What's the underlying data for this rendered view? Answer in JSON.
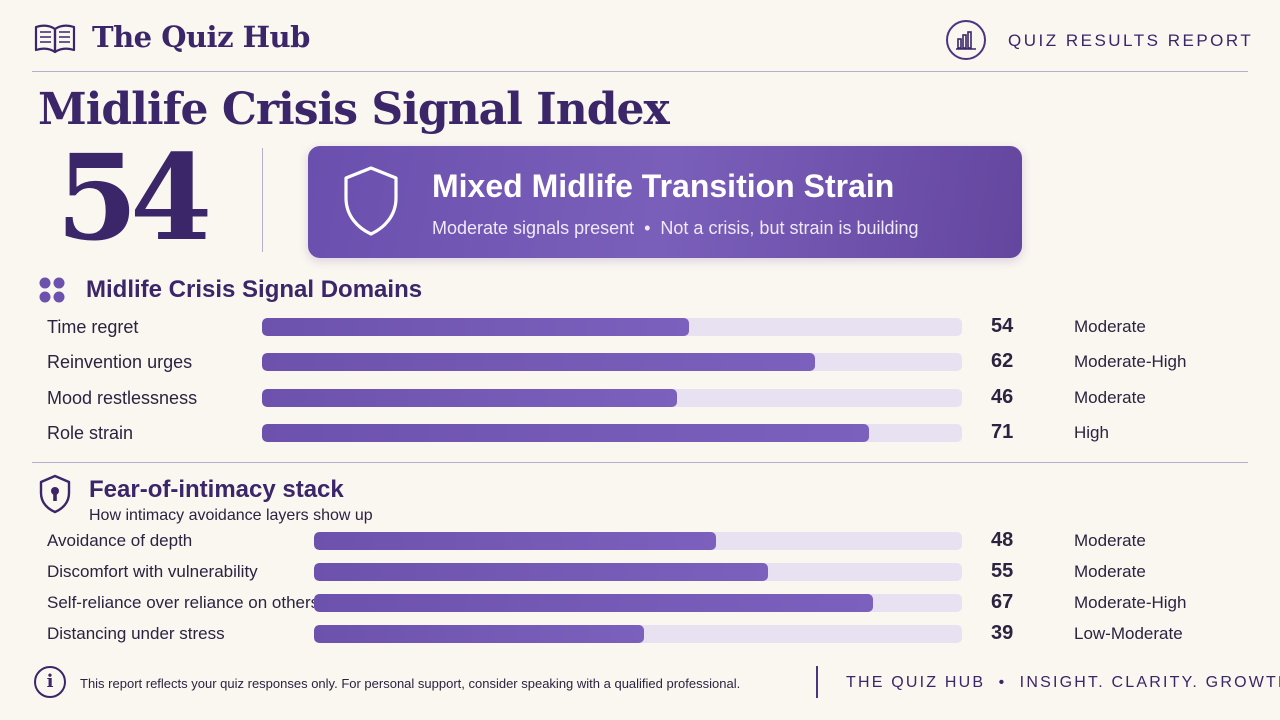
{
  "header": {
    "brand": "The Quiz Hub",
    "report_label": "QUIZ RESULTS REPORT"
  },
  "title": "Midlife Crisis Signal Index",
  "score": "54",
  "result": {
    "title": "Mixed Midlife Transition Strain",
    "subtitle": "Moderate signals present  •  Not a crisis, but strain is building"
  },
  "domains": {
    "title": "Midlife Crisis Signal Domains",
    "rows": [
      {
        "label": "Time regret",
        "score": "54",
        "level": "Moderate",
        "fill": 0.61
      },
      {
        "label": "Reinvention urges",
        "score": "62",
        "level": "Moderate-High",
        "fill": 0.79
      },
      {
        "label": "Mood restlessness",
        "score": "46",
        "level": "Moderate",
        "fill": 0.593
      },
      {
        "label": "Role strain",
        "score": "71",
        "level": "High",
        "fill": 0.867
      }
    ]
  },
  "intimacy": {
    "title": "Fear-of-intimacy stack",
    "subtitle": "How intimacy avoidance layers show up",
    "rows": [
      {
        "label": "Avoidance of depth",
        "score": "48",
        "level": "Moderate",
        "fill": 0.62
      },
      {
        "label": "Discomfort with vulnerability",
        "score": "55",
        "level": "Moderate",
        "fill": 0.701
      },
      {
        "label": "Self-reliance over reliance on others",
        "score": "67",
        "level": "Moderate-High",
        "fill": 0.863
      },
      {
        "label": "Distancing under stress",
        "score": "39",
        "level": "Low-Moderate",
        "fill": 0.509
      }
    ]
  },
  "footer": {
    "note": "This report reflects your quiz responses only. For personal support, consider speaking with a qualified professional.",
    "tagline": "THE QUIZ HUB  •  INSIGHT. CLARITY. GROWTH.",
    "info_glyph": "i"
  },
  "colors": {
    "accent": "#3a2668",
    "bar": "#6d52ad",
    "track": "#e8e1f1",
    "card": "#6a4fae",
    "background": "#faf6f0"
  },
  "icons": {
    "logo": "open-book-icon",
    "report": "bar-chart-icon",
    "result": "shield-icon",
    "domains": "four-dots-icon",
    "intimacy": "shield-keyhole-icon",
    "footer": "info-icon"
  }
}
